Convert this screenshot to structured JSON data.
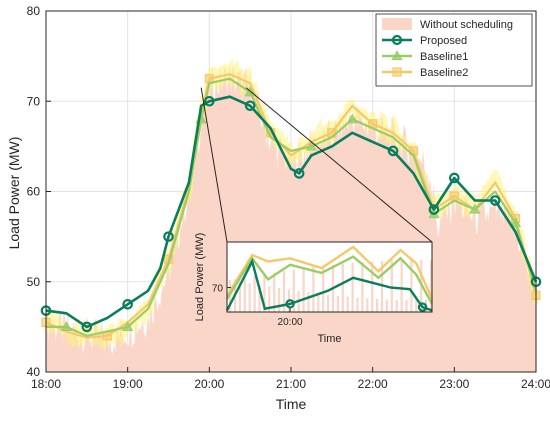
{
  "chart_data": {
    "type": "line",
    "xlabel": "Time",
    "ylabel": "Load Power (MW)",
    "xlim": [
      18,
      24
    ],
    "ylim": [
      40,
      80
    ],
    "xticks": [
      18,
      19,
      20,
      21,
      22,
      23,
      24
    ],
    "xtick_labels": [
      "18:00",
      "19:00",
      "20:00",
      "21:00",
      "22:00",
      "23:00",
      "24:00"
    ],
    "yticks": [
      40,
      50,
      60,
      70,
      80
    ],
    "ytick_labels": [
      "40",
      "50",
      "60",
      "70",
      "80"
    ],
    "grid": true,
    "legend_position": "top-right",
    "series": [
      {
        "name": "Without scheduling",
        "style": "area",
        "color": "#f9d6c7",
        "x": [
          18.0,
          18.25,
          18.5,
          18.75,
          19.0,
          19.25,
          19.5,
          19.75,
          19.9,
          20.0,
          20.25,
          20.5,
          20.6,
          20.75,
          21.0,
          21.25,
          21.5,
          21.75,
          22.0,
          22.25,
          22.5,
          22.7,
          22.8,
          23.0,
          23.25,
          23.5,
          23.75,
          24.0
        ],
        "values": [
          45.5,
          44.5,
          44.0,
          43.5,
          44.5,
          46.0,
          51.0,
          60.0,
          68.0,
          71.5,
          72.5,
          71.5,
          69.0,
          65.5,
          63.0,
          65.0,
          66.0,
          68.0,
          67.0,
          66.0,
          64.5,
          62.0,
          56.0,
          59.0,
          57.0,
          57.5,
          56.0,
          48.5
        ]
      },
      {
        "name": "Proposed",
        "style": "line-marker",
        "marker": "circle",
        "color": "#0a7d5d",
        "x": [
          18.0,
          18.25,
          18.5,
          18.75,
          19.0,
          19.25,
          19.4,
          19.5,
          19.75,
          19.9,
          20.0,
          20.25,
          20.5,
          20.75,
          21.0,
          21.1,
          21.25,
          21.5,
          21.75,
          22.0,
          22.25,
          22.5,
          22.75,
          23.0,
          23.25,
          23.5,
          23.75,
          24.0
        ],
        "values": [
          46.8,
          46.5,
          45.0,
          46.0,
          47.5,
          49.0,
          51.5,
          55.0,
          61.0,
          69.5,
          70.0,
          70.5,
          69.5,
          67.0,
          62.5,
          62.0,
          64.0,
          65.0,
          66.5,
          65.5,
          64.5,
          62.0,
          58.0,
          61.5,
          59.0,
          59.0,
          55.5,
          50.0
        ]
      },
      {
        "name": "Baseline1",
        "style": "line-marker",
        "marker": "triangle",
        "color": "#9acd68",
        "x": [
          18.0,
          18.25,
          18.5,
          18.75,
          19.0,
          19.25,
          19.5,
          19.75,
          19.9,
          20.0,
          20.25,
          20.5,
          20.75,
          21.0,
          21.25,
          21.5,
          21.75,
          22.0,
          22.25,
          22.5,
          22.75,
          23.0,
          23.25,
          23.5,
          23.75,
          24.0
        ],
        "values": [
          45.0,
          45.0,
          44.0,
          44.5,
          45.0,
          47.0,
          52.0,
          60.0,
          68.0,
          72.0,
          72.5,
          71.0,
          66.0,
          64.5,
          65.0,
          66.0,
          68.0,
          67.0,
          66.0,
          64.0,
          57.5,
          59.0,
          58.0,
          60.0,
          56.5,
          49.0
        ]
      },
      {
        "name": "Baseline2",
        "style": "line-marker",
        "marker": "square",
        "color": "#f5c96a",
        "x": [
          18.0,
          18.25,
          18.5,
          18.75,
          19.0,
          19.25,
          19.5,
          19.75,
          19.9,
          20.0,
          20.25,
          20.5,
          20.75,
          21.0,
          21.25,
          21.5,
          21.75,
          22.0,
          22.25,
          22.5,
          22.75,
          23.0,
          23.25,
          23.5,
          23.75,
          24.0
        ],
        "values": [
          45.5,
          44.5,
          43.8,
          44.0,
          45.5,
          47.5,
          52.5,
          60.5,
          68.5,
          72.5,
          73.0,
          72.0,
          66.5,
          64.0,
          65.5,
          66.5,
          69.5,
          67.5,
          66.5,
          64.5,
          58.0,
          59.5,
          58.0,
          61.0,
          57.0,
          48.5
        ]
      }
    ],
    "inset": {
      "xlabel": "Time",
      "ylabel": "Load Power (MW)",
      "xticks": [
        20.0
      ],
      "xtick_labels": [
        "20:00"
      ],
      "yticks": [
        70
      ],
      "ytick_labels": [
        "70"
      ],
      "xlim": [
        19.8,
        20.45
      ],
      "ylim": [
        68.5,
        72.8
      ]
    }
  }
}
